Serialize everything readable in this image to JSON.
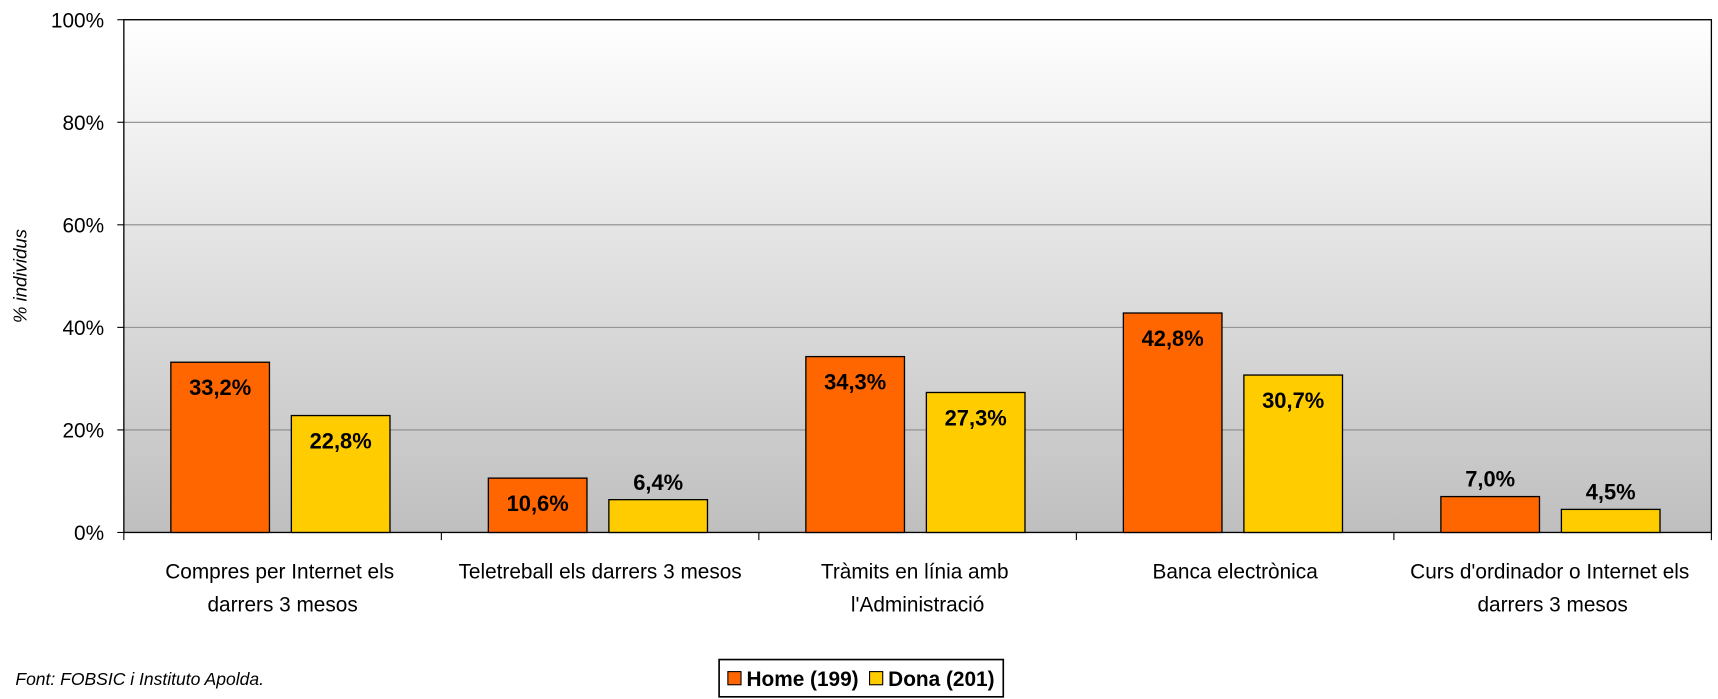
{
  "chart_data": {
    "type": "bar",
    "y_label": "% individus",
    "source": "Font: FOBSIC i Instituto Apolda.",
    "categories": [
      "Compres per Internet els darrers 3 mesos",
      "Teletreball els darrers 3 mesos",
      "Tràmits en línia amb l'Administració",
      "Banca electrònica",
      "Curs d'ordinador o Internet els darrers 3 mesos"
    ],
    "series": [
      {
        "name": "Home (199)",
        "color": "#ff6600",
        "values": [
          33.2,
          10.6,
          34.3,
          42.8,
          7.0
        ],
        "value_labels": [
          "33,2%",
          "10,6%",
          "34,3%",
          "42,8%",
          "7,0%"
        ]
      },
      {
        "name": "Dona (201)",
        "color": "#ffcc00",
        "values": [
          22.8,
          6.4,
          27.3,
          30.7,
          4.5
        ],
        "value_labels": [
          "22,8%",
          "6,4%",
          "27,3%",
          "30,7%",
          "4,5%"
        ]
      }
    ],
    "ylim": [
      0,
      100
    ],
    "yticks": [
      {
        "value": 0,
        "label": "0%"
      },
      {
        "value": 20,
        "label": "20%"
      },
      {
        "value": 40,
        "label": "40%"
      },
      {
        "value": 60,
        "label": "60%"
      },
      {
        "value": 80,
        "label": "80%"
      },
      {
        "value": 100,
        "label": "100%"
      }
    ],
    "grid": true,
    "legend": "bottom"
  }
}
